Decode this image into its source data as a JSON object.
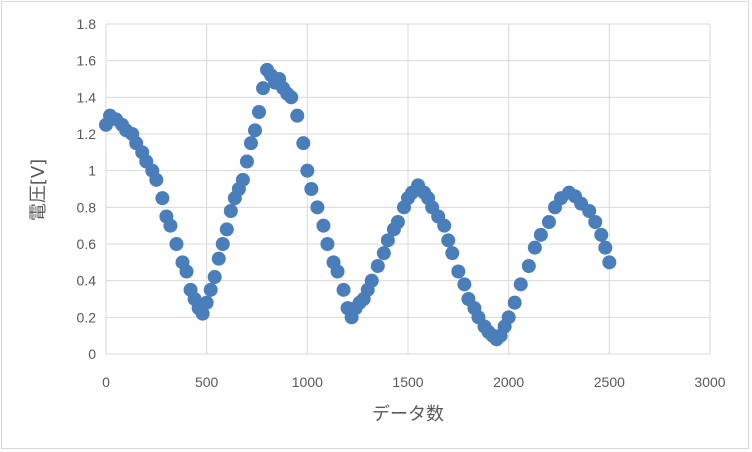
{
  "chart_data": {
    "type": "scatter",
    "title": "",
    "xlabel": "データ数",
    "ylabel": "電圧[V]",
    "xlim": [
      0,
      3000
    ],
    "ylim": [
      0,
      1.8
    ],
    "xticks": [
      "0",
      "500",
      "1000",
      "1500",
      "2000",
      "2500",
      "3000"
    ],
    "yticks": [
      "0",
      "0.2",
      "0.4",
      "0.6",
      "0.8",
      "1",
      "1.2",
      "1.4",
      "1.6",
      "1.8"
    ],
    "grid": true,
    "legend": "none",
    "marker_color": "#4a7ebb",
    "series": [
      {
        "x": [
          0,
          20,
          50,
          80,
          100,
          130,
          150,
          180,
          200,
          230,
          250,
          280,
          300,
          320,
          350,
          380,
          400,
          420,
          440,
          460,
          480,
          500,
          520,
          540,
          560,
          580,
          600,
          620,
          640,
          660,
          680,
          700,
          720,
          740,
          760,
          780,
          800,
          820,
          840,
          860,
          880,
          900,
          920,
          950,
          980,
          1000,
          1020,
          1050,
          1080,
          1100,
          1130,
          1150,
          1180,
          1200,
          1220,
          1240,
          1260,
          1280,
          1300,
          1320,
          1350,
          1380,
          1400,
          1430,
          1450,
          1480,
          1500,
          1520,
          1550,
          1580,
          1600,
          1620,
          1650,
          1680,
          1700,
          1720,
          1750,
          1780,
          1800,
          1830,
          1850,
          1880,
          1900,
          1920,
          1940,
          1960,
          1980,
          2000,
          2030,
          2060,
          2100,
          2130,
          2160,
          2200,
          2230,
          2260,
          2300,
          2330,
          2360,
          2400,
          2430,
          2460,
          2480,
          2500
        ],
        "y": [
          1.25,
          1.3,
          1.28,
          1.25,
          1.22,
          1.2,
          1.15,
          1.1,
          1.05,
          1.0,
          0.95,
          0.85,
          0.75,
          0.7,
          0.6,
          0.5,
          0.45,
          0.35,
          0.3,
          0.25,
          0.22,
          0.28,
          0.35,
          0.42,
          0.52,
          0.6,
          0.68,
          0.78,
          0.85,
          0.9,
          0.95,
          1.05,
          1.15,
          1.22,
          1.32,
          1.45,
          1.55,
          1.52,
          1.48,
          1.5,
          1.45,
          1.42,
          1.4,
          1.3,
          1.15,
          1.0,
          0.9,
          0.8,
          0.7,
          0.6,
          0.5,
          0.45,
          0.35,
          0.25,
          0.2,
          0.25,
          0.28,
          0.3,
          0.35,
          0.4,
          0.48,
          0.55,
          0.62,
          0.68,
          0.72,
          0.8,
          0.85,
          0.88,
          0.92,
          0.88,
          0.85,
          0.8,
          0.75,
          0.7,
          0.62,
          0.55,
          0.45,
          0.38,
          0.3,
          0.25,
          0.2,
          0.15,
          0.12,
          0.1,
          0.08,
          0.1,
          0.15,
          0.2,
          0.28,
          0.38,
          0.48,
          0.58,
          0.65,
          0.72,
          0.8,
          0.85,
          0.88,
          0.86,
          0.82,
          0.78,
          0.72,
          0.65,
          0.58,
          0.5
        ]
      }
    ]
  }
}
